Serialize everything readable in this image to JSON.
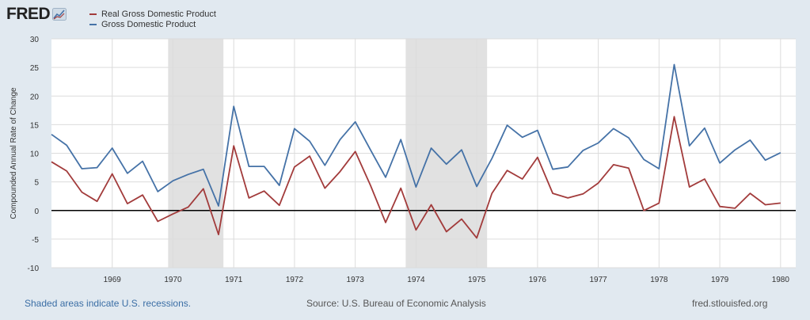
{
  "brand": {
    "name": "FRED",
    "icon": "fred-graph-icon"
  },
  "colors": {
    "real_gdp": "#a23b3b",
    "gdp": "#4572a7",
    "recession": "#e1e1e1",
    "grid": "#dcdcdc"
  },
  "footer": {
    "recession_note": "Shaded areas indicate U.S. recessions.",
    "source": "Source: U.S. Bureau of Economic Analysis",
    "site": "fred.stlouisfed.org"
  },
  "chart_data": {
    "type": "line",
    "ylabel": "Compounded Annual Rate of Change",
    "ylim": [
      -10,
      30
    ],
    "yticks": [
      -10,
      -5,
      0,
      5,
      10,
      15,
      20,
      25,
      30
    ],
    "xlim": [
      1968.0,
      1980.25
    ],
    "xticks": [
      {
        "label": "1969",
        "value": 1969
      },
      {
        "label": "1970",
        "value": 1970
      },
      {
        "label": "1971",
        "value": 1971
      },
      {
        "label": "1972",
        "value": 1972
      },
      {
        "label": "1973",
        "value": 1973
      },
      {
        "label": "1974",
        "value": 1974
      },
      {
        "label": "1975",
        "value": 1975
      },
      {
        "label": "1976",
        "value": 1976
      },
      {
        "label": "1977",
        "value": 1977
      },
      {
        "label": "1978",
        "value": 1978
      },
      {
        "label": "1979",
        "value": 1979
      },
      {
        "label": "1980",
        "value": 1980
      }
    ],
    "recessions": [
      [
        1969.92,
        1970.83
      ],
      [
        1973.83,
        1975.17
      ]
    ],
    "grid": true,
    "legend_position": "top-left",
    "x": [
      1968.0,
      1968.25,
      1968.5,
      1968.75,
      1969.0,
      1969.25,
      1969.5,
      1969.75,
      1970.0,
      1970.25,
      1970.5,
      1970.75,
      1971.0,
      1971.25,
      1971.5,
      1971.75,
      1972.0,
      1972.25,
      1972.5,
      1972.75,
      1973.0,
      1973.25,
      1973.5,
      1973.75,
      1974.0,
      1974.25,
      1974.5,
      1974.75,
      1975.0,
      1975.25,
      1975.5,
      1975.75,
      1976.0,
      1976.25,
      1976.5,
      1976.75,
      1977.0,
      1977.25,
      1977.5,
      1977.75,
      1978.0,
      1978.25,
      1978.5,
      1978.75,
      1979.0,
      1979.25,
      1979.5,
      1979.75,
      1980.0
    ],
    "series": [
      {
        "name": "Real Gross Domestic Product",
        "values": [
          8.5,
          6.9,
          3.2,
          1.6,
          6.4,
          1.2,
          2.7,
          -1.9,
          -0.6,
          0.6,
          3.8,
          -4.2,
          11.3,
          2.2,
          3.4,
          0.9,
          7.6,
          9.5,
          3.9,
          6.8,
          10.3,
          4.4,
          -2.1,
          3.9,
          -3.4,
          1.0,
          -3.7,
          -1.5,
          -4.8,
          3.0,
          7.0,
          5.5,
          9.3,
          3.0,
          2.2,
          2.9,
          4.8,
          8.0,
          7.4,
          0.0,
          1.3,
          16.4,
          4.1,
          5.5,
          0.7,
          0.4,
          3.0,
          1.0,
          1.3
        ]
      },
      {
        "name": "Gross Domestic Product",
        "values": [
          13.3,
          11.4,
          7.3,
          7.5,
          10.9,
          6.5,
          8.6,
          3.3,
          5.2,
          6.3,
          7.2,
          0.8,
          18.2,
          7.7,
          7.7,
          4.4,
          14.3,
          12.1,
          7.9,
          12.4,
          15.5,
          10.6,
          5.8,
          12.4,
          4.1,
          10.9,
          8.1,
          10.6,
          4.2,
          9.1,
          14.9,
          12.8,
          14.0,
          7.2,
          7.6,
          10.5,
          11.8,
          14.3,
          12.7,
          8.9,
          7.3,
          25.5,
          11.3,
          14.4,
          8.3,
          10.6,
          12.3,
          8.8,
          10.1
        ]
      }
    ]
  }
}
